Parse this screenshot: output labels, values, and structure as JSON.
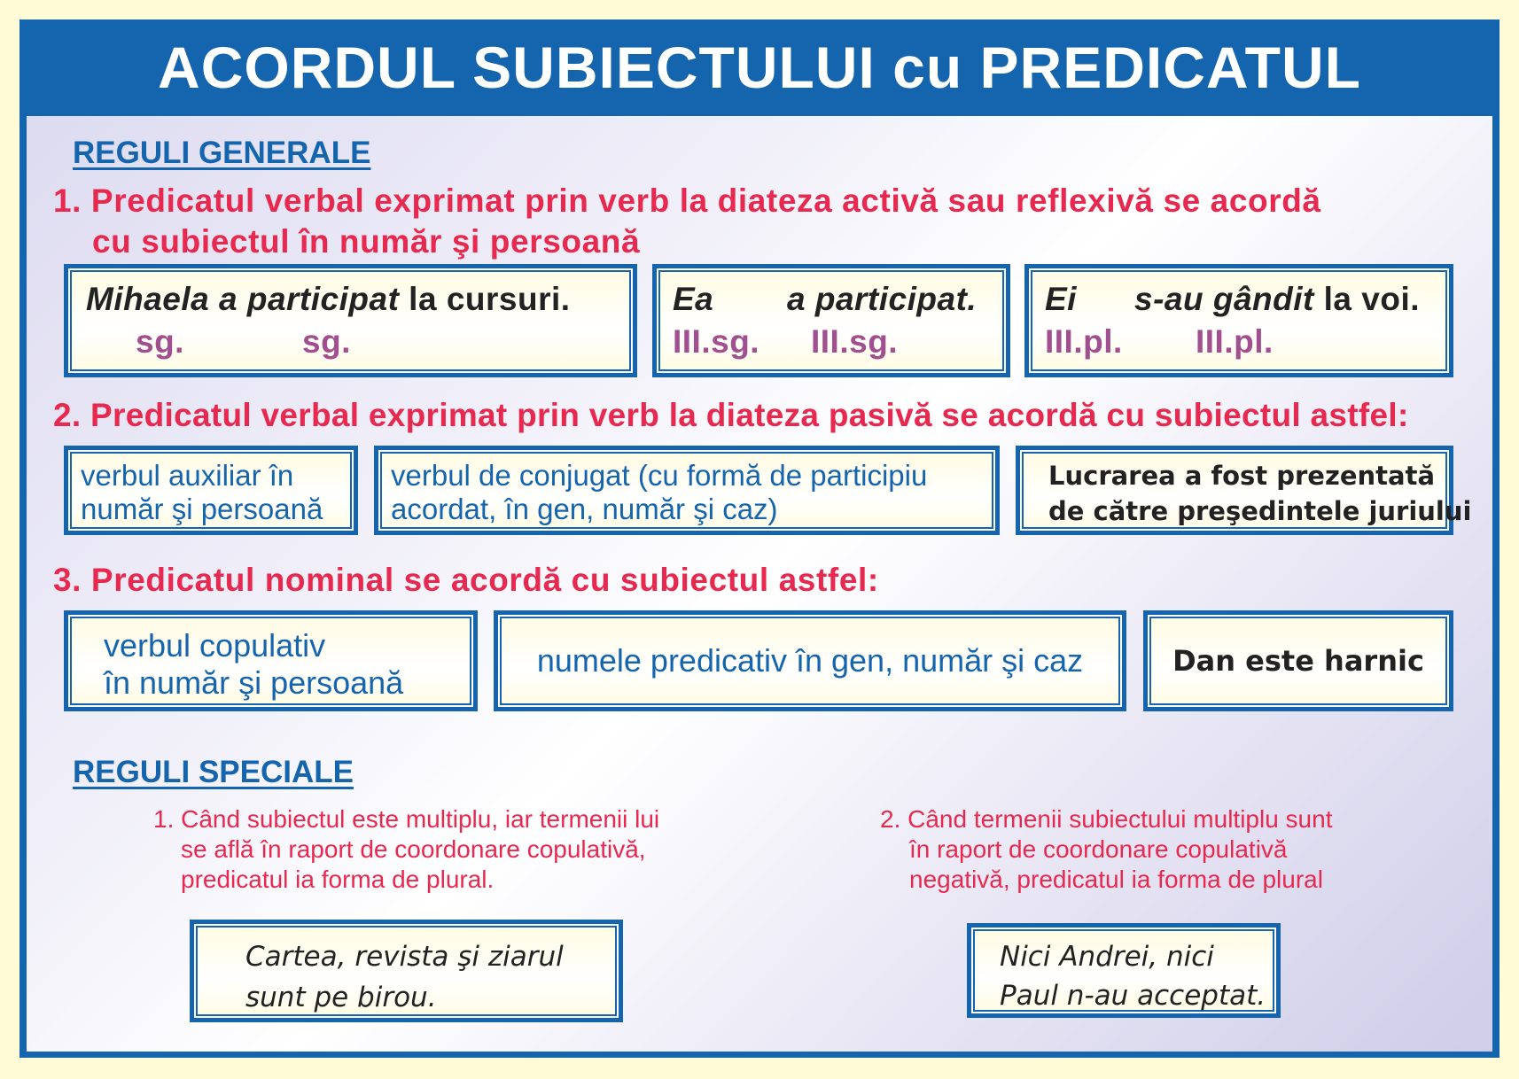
{
  "title": "ACORDUL SUBIECTULUI cu PREDICATUL",
  "colors": {
    "frame": "#1565ae",
    "rule_text": "#e8294f",
    "tag_text": "#a0508e",
    "background": "#fffbd6"
  },
  "general": {
    "heading": "REGULI GENERALE",
    "rule1": {
      "line1": "1. Predicatul verbal exprimat prin verb la diateza activă sau reflexivă se acordă",
      "line2": "cu subiectul în număr şi persoană",
      "examples": [
        {
          "subject": "Mihaela",
          "predicate": "a participat",
          "rest": " la cursuri.",
          "tag1": "sg.",
          "tag2": "sg."
        },
        {
          "subject": "Ea",
          "predicate": "a participat.",
          "rest": "",
          "tag1": "III.sg.",
          "tag2": "III.sg."
        },
        {
          "subject": "Ei",
          "predicate": "s-au gândit",
          "rest": " la voi.",
          "tag1": "III.pl.",
          "tag2": "III.pl."
        }
      ]
    },
    "rule2": {
      "text": "2. Predicatul verbal exprimat prin verb la diateza pasivă se acordă cu subiectul astfel:",
      "box1": [
        "verbul auxiliar în",
        "număr şi persoană"
      ],
      "box2": [
        "verbul de conjugat (cu formă de participiu",
        "acordat, în gen, număr şi caz)"
      ],
      "example": [
        "Lucrarea a fost prezentată",
        "de către preşedintele juriului"
      ]
    },
    "rule3": {
      "text": "3. Predicatul nominal se acordă cu subiectul astfel:",
      "box1": [
        "verbul copulativ",
        "în număr şi persoană"
      ],
      "box2": "numele predicativ în gen, număr şi caz",
      "example": "Dan este harnic"
    }
  },
  "special": {
    "heading": "REGULI SPECIALE",
    "rule1": [
      "1. Când subiectul este multiplu, iar termenii lui",
      "se află în raport de  coordonare copulativă,",
      "predicatul ia forma de plural."
    ],
    "rule2": [
      "2. Când termenii subiectului multiplu sunt",
      "în raport de coordonare copulativă",
      "negativă, predicatul ia forma de plural"
    ],
    "example1": [
      "Cartea, revista şi ziarul",
      "sunt pe birou."
    ],
    "example2": [
      "Nici Andrei, nici",
      "Paul n-au acceptat."
    ]
  }
}
